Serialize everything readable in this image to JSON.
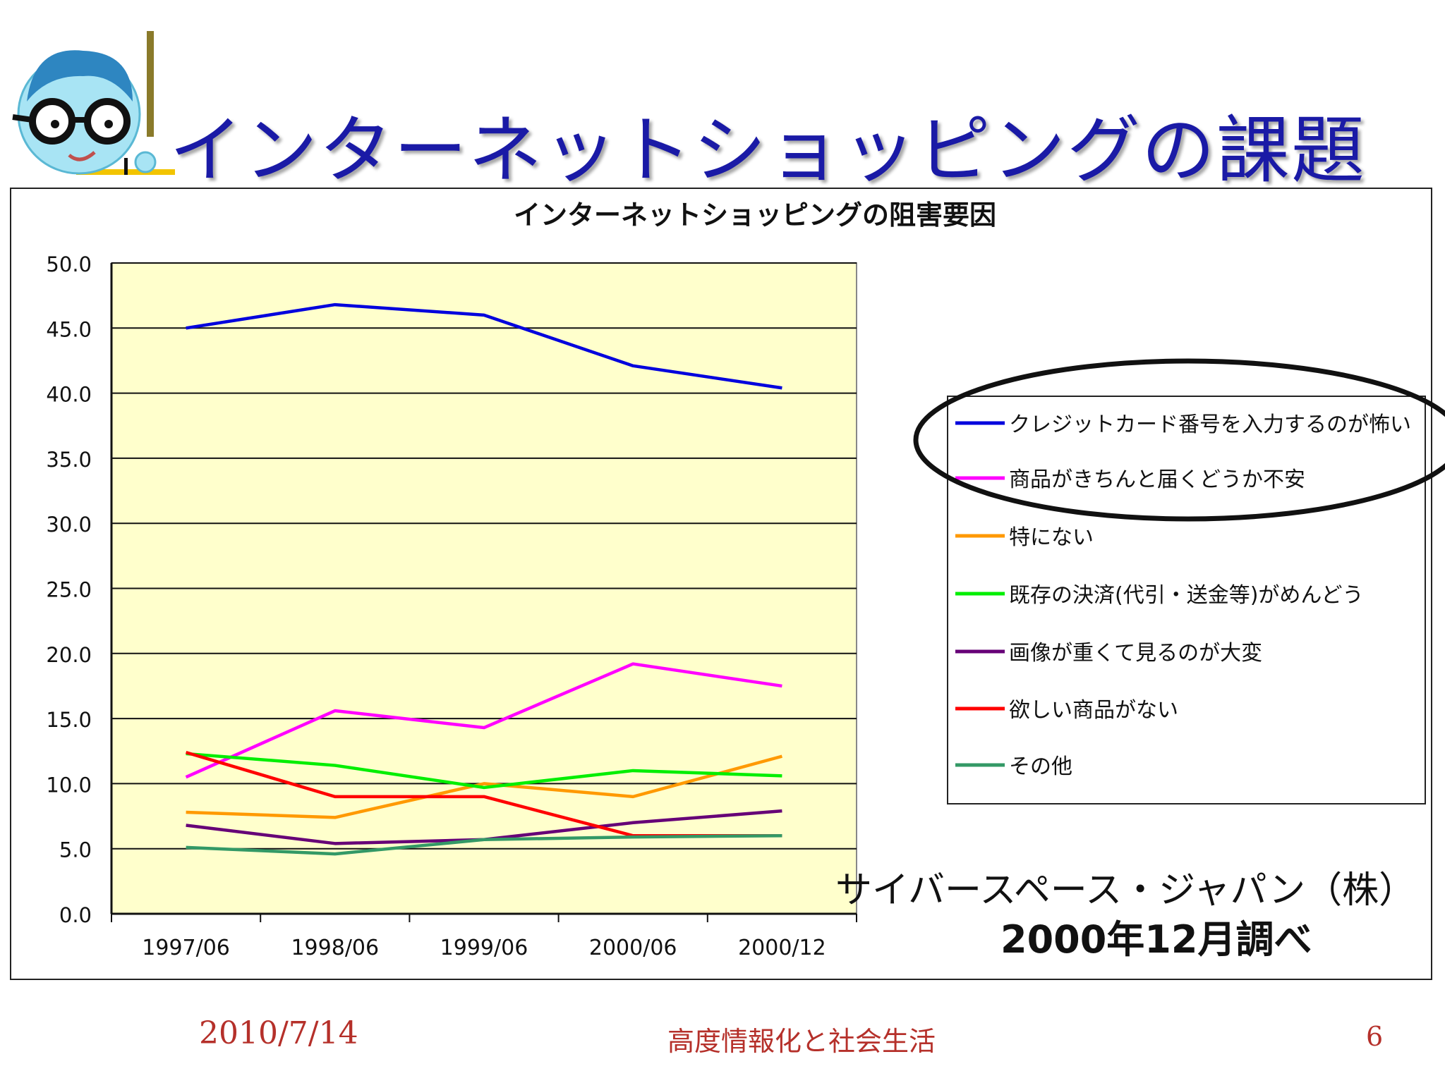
{
  "slide": {
    "title": "インターネットショッピングの課題",
    "source_line1": "サイバースペース・ジャパン（株）",
    "source_line2": "2000年12月調べ",
    "footer_date": "2010/7/14",
    "footer_center": "高度情報化と社会生活",
    "page_number": "6"
  },
  "chart_data": {
    "type": "line",
    "title": "インターネットショッピングの阻害要因",
    "categories": [
      "1997/06",
      "1998/06",
      "1999/06",
      "2000/06",
      "2000/12"
    ],
    "ylim": [
      0,
      50
    ],
    "yticks": [
      "50.0",
      "45.0",
      "40.0",
      "35.0",
      "30.0",
      "25.0",
      "20.0",
      "15.0",
      "10.0",
      "5.0",
      "0.0"
    ],
    "grid": true,
    "legend_position": "right",
    "plot_background": "#ffffcc",
    "series": [
      {
        "name": "クレジットカード番号を入力するのが怖い",
        "color": "#0000dd",
        "values": [
          45.0,
          46.8,
          46.0,
          42.1,
          40.4
        ]
      },
      {
        "name": "商品がきちんと届くどうか不安",
        "color": "#ff00ff",
        "values": [
          10.5,
          15.6,
          14.3,
          19.2,
          17.5
        ]
      },
      {
        "name": "特にない",
        "color": "#ff9900",
        "values": [
          7.8,
          7.4,
          10.0,
          9.0,
          12.1
        ]
      },
      {
        "name": "既存の決済(代引・送金等)がめんどう",
        "color": "#00ee00",
        "values": [
          12.3,
          11.4,
          9.7,
          11.0,
          10.6
        ]
      },
      {
        "name": "画像が重くて見るのが大変",
        "color": "#660077",
        "values": [
          6.8,
          5.4,
          5.7,
          7.0,
          7.9
        ]
      },
      {
        "name": "欲しい商品がない",
        "color": "#ff0000",
        "values": [
          12.4,
          9.0,
          9.0,
          6.0,
          6.0
        ]
      },
      {
        "name": "その他",
        "color": "#339966",
        "values": [
          5.1,
          4.6,
          5.7,
          5.9,
          6.0
        ]
      }
    ]
  }
}
